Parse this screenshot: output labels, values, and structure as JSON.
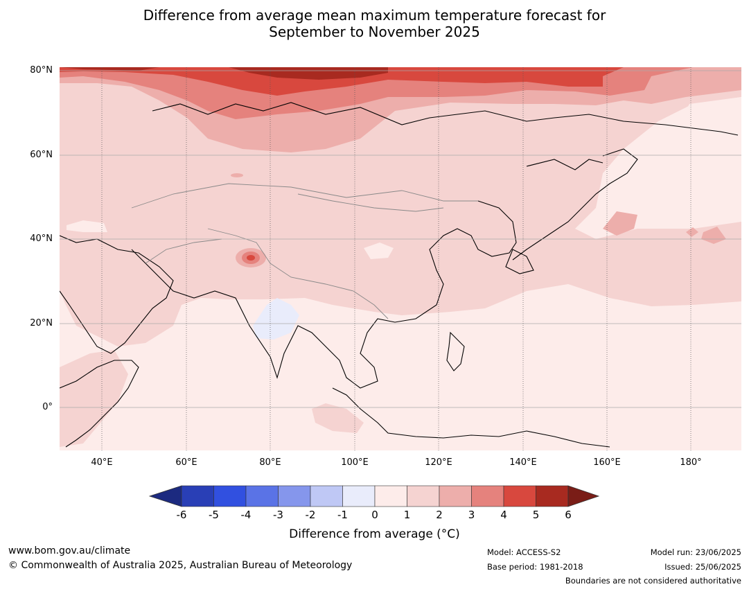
{
  "title_line1": "Difference from average mean maximum temperature forecast for",
  "title_line2": "September to November 2025",
  "lat_labels": [
    "80°N",
    "60°N",
    "40°N",
    "20°N",
    "0°"
  ],
  "lon_labels": [
    "40°E",
    "60°E",
    "80°E",
    "100°E",
    "120°E",
    "140°E",
    "160°E",
    "180°"
  ],
  "colorbar": {
    "ticks": [
      "-6",
      "-5",
      "-4",
      "-3",
      "-2",
      "-1",
      "0",
      "1",
      "2",
      "3",
      "4",
      "5",
      "6"
    ],
    "colors": [
      "#1c2a80",
      "#293fb6",
      "#3150e0",
      "#5a73e6",
      "#8596ec",
      "#bfc8f5",
      "#e9ecfb",
      "#fdecea",
      "#f5d3d1",
      "#edaeab",
      "#e5827d",
      "#d8483e",
      "#a82a20",
      "#7a1d17"
    ],
    "label": "Difference from average (°C)"
  },
  "footer": {
    "website": "www.bom.gov.au/climate",
    "copyright": "© Commonwealth of Australia 2025, Australian Bureau of Meteorology",
    "model": "Model: ACCESS-S2",
    "base_period": "Base period: 1981-2018",
    "model_run": "Model run: 23/06/2025",
    "issued": "Issued: 25/06/2025",
    "disclaimer": "Boundaries are not considered authoritative"
  }
}
